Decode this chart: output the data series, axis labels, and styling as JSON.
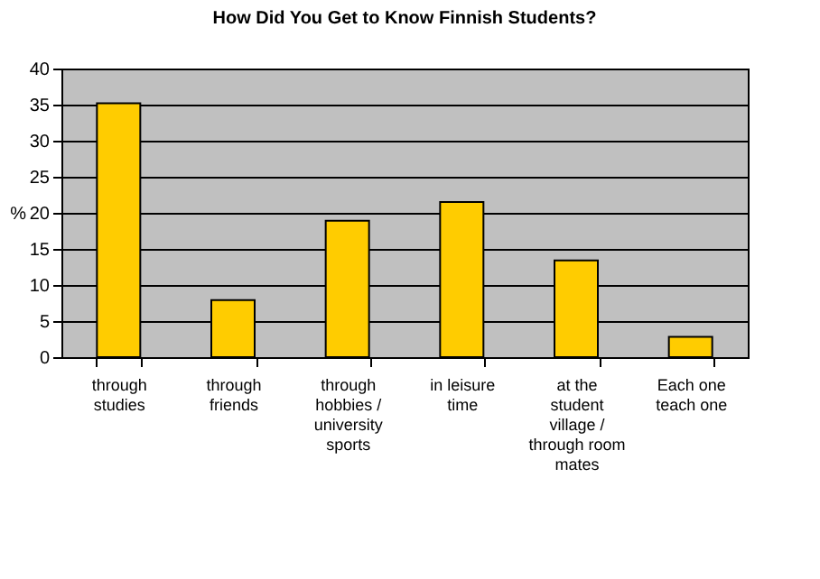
{
  "chart_data": {
    "type": "bar",
    "title": "How Did You Get to Know Finnish Students?",
    "ylabel": "%",
    "categories": [
      "through studies",
      "through friends",
      "through hobbies / university sports",
      "in leisure time",
      "at the student village / through room mates",
      "Each one teach one"
    ],
    "values": [
      35.2,
      7.9,
      18.9,
      21.5,
      13.4,
      2.8
    ],
    "color": "#ffcc00",
    "ylim": [
      0,
      40
    ],
    "yticks": [
      0,
      5,
      10,
      15,
      20,
      25,
      30,
      35,
      40
    ],
    "grid": "y"
  }
}
